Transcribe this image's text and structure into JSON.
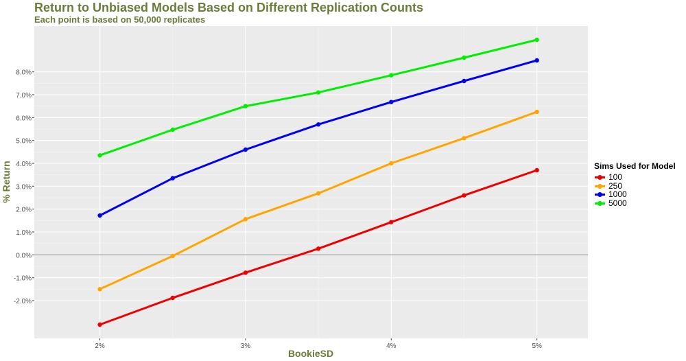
{
  "chart_data": {
    "type": "line",
    "title": "Return to Unbiased Models Based on Different Replication Counts",
    "subtitle": "Each point is based on 50,000 replicates",
    "xlabel": "BookieSD",
    "ylabel": "% Return",
    "x": [
      2.0,
      2.5,
      3.0,
      3.5,
      4.0,
      4.5,
      5.0
    ],
    "x_ticks": [
      2,
      3,
      4,
      5
    ],
    "x_tick_labels": [
      "2%",
      "3%",
      "4%",
      "5%"
    ],
    "xlim": [
      1.55,
      5.35
    ],
    "y_ticks": [
      -2.0,
      -1.0,
      0.0,
      1.0,
      2.0,
      3.0,
      4.0,
      5.0,
      6.0,
      7.0,
      8.0
    ],
    "y_tick_labels": [
      "-2.0%",
      "-1.0%",
      "0.0%",
      "1.0%",
      "2.0%",
      "3.0%",
      "4.0%",
      "5.0%",
      "6.0%",
      "7.0%",
      "8.0%"
    ],
    "ylim": [
      -3.65,
      10.0
    ],
    "reference_line_y": 0.0,
    "grid": true,
    "legend_title": "Sims Used for Model",
    "legend_position": "right",
    "series": [
      {
        "name": "100",
        "color": "#ee0000",
        "values": [
          -3.05,
          -1.88,
          -0.78,
          0.27,
          1.43,
          2.6,
          3.7
        ]
      },
      {
        "name": "250",
        "color": "#ffa500",
        "values": [
          -1.5,
          -0.05,
          1.56,
          2.69,
          4.0,
          5.1,
          6.25
        ]
      },
      {
        "name": "1000",
        "color": "#0000ee",
        "values": [
          1.72,
          3.35,
          4.6,
          5.7,
          6.68,
          7.6,
          8.5
        ]
      },
      {
        "name": "5000",
        "color": "#00ee00",
        "values": [
          4.35,
          5.47,
          6.5,
          7.1,
          7.85,
          8.62,
          9.4
        ]
      }
    ]
  }
}
